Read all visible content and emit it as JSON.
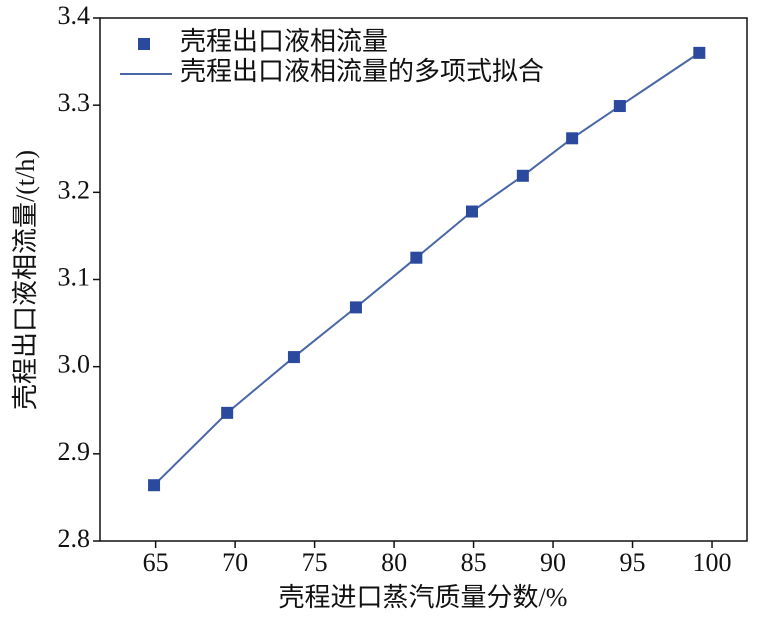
{
  "chart_data": {
    "type": "scatter",
    "x_label": "壳程进口蒸汽质量分数/%",
    "y_label": "壳程出口液相流量/(t/h)",
    "xlim": [
      61.5,
      102.2
    ],
    "xticks": [
      65,
      70,
      75,
      80,
      85,
      90,
      95,
      100
    ],
    "ylim": [
      2.8,
      3.4
    ],
    "yticks": [
      {
        "value": 2.8,
        "label": "2.8"
      },
      2.9,
      {
        "value": 3.0,
        "label": "3.0"
      },
      3.1,
      3.2,
      3.3,
      3.4
    ],
    "legend": "top-left",
    "series": [
      {
        "name": "壳程出口液相流量",
        "mark": "square",
        "color": "#2b4a9e",
        "x": [
          64.9,
          69.5,
          73.7,
          77.6,
          81.4,
          84.9,
          88.1,
          91.2,
          94.2,
          99.2
        ],
        "values": [
          2.864,
          2.947,
          3.011,
          3.068,
          3.125,
          3.178,
          3.219,
          3.262,
          3.299,
          3.36
        ]
      },
      {
        "name": "壳程出口液相流量的多项式拟合",
        "mark": "line",
        "color": "#4a67a8",
        "x": [
          64.9,
          69.5,
          73.7,
          77.6,
          81.4,
          84.9,
          88.1,
          91.2,
          94.2,
          99.2
        ],
        "values": [
          2.864,
          2.947,
          3.011,
          3.068,
          3.125,
          3.178,
          3.219,
          3.262,
          3.299,
          3.36
        ]
      }
    ]
  }
}
